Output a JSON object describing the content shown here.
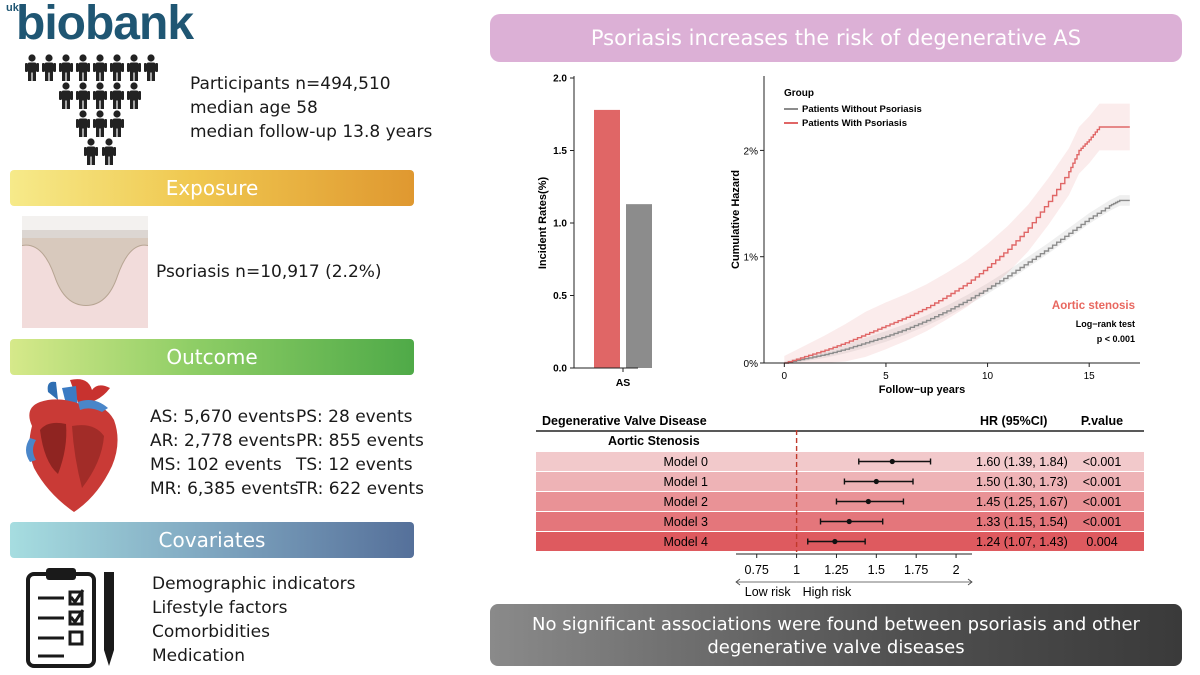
{
  "logo": {
    "prefix": "uk",
    "word": "biobank"
  },
  "cohort": {
    "participants": "Participants   n=494,510",
    "median_age": "median age 58",
    "follow_up": "median follow-up 13.8 years"
  },
  "exposure": {
    "heading": "Exposure",
    "text": "Psoriasis   n=10,917 (2.2%)"
  },
  "outcome": {
    "heading": "Outcome",
    "events_left": [
      "AS: 5,670 events",
      "AR: 2,778 events",
      "MS: 102 events",
      "MR: 6,385 events"
    ],
    "events_right": [
      "PS: 28 events",
      "PR: 855 events",
      "TS: 12 events",
      "TR: 622 events"
    ]
  },
  "covariates": {
    "heading": "Covariates",
    "items": [
      "Demographic indicators",
      "Lifestyle factors",
      "Comorbidities",
      "Medication"
    ]
  },
  "banner": "Psoriasis increases the risk of degenerative AS",
  "footer": {
    "line1": "No significant associations were found between psoriasis and other",
    "line2": "degenerative valve diseases"
  },
  "colors": {
    "psoriasis_red": "#e06666",
    "no_psoriasis_gray": "#8c8c8c",
    "banner_pink": "#dcb0d6",
    "logo_blue": "#1f5673",
    "annotation_red": "#e8675f"
  },
  "chart_data": [
    {
      "type": "bar",
      "categories": [
        "AS"
      ],
      "series": [
        {
          "values": [
            1.78
          ]
        },
        {
          "values": [
            1.13
          ]
        }
      ],
      "ylabel": "Incident Rates(%)",
      "ylim": [
        0,
        2.0
      ],
      "yticks": [
        "0.0",
        "0.5",
        "1.0",
        "1.5",
        "2.0"
      ]
    },
    {
      "type": "line",
      "legend_title": "Group",
      "xlabel": "Follow−up years",
      "ylabel": "Cumulative Hazard",
      "xlim": [
        -1,
        17.5
      ],
      "ylim": [
        0,
        2.7
      ],
      "xticks": [
        "0",
        "5",
        "10",
        "15"
      ],
      "yticks": [
        "0%",
        "1%",
        "2%"
      ],
      "annotation": "Aortic stenosis",
      "test_label": "Log−rank test",
      "p_label": "p < 0.001",
      "series": [
        {
          "name": "Patients Without Psoriasis",
          "x": [
            0,
            1,
            2,
            3,
            4,
            5,
            6,
            7,
            8,
            9,
            10,
            11,
            12,
            13,
            14,
            15,
            16,
            16.5,
            17
          ],
          "y": [
            0,
            0.04,
            0.08,
            0.13,
            0.19,
            0.25,
            0.32,
            0.4,
            0.49,
            0.59,
            0.7,
            0.82,
            0.95,
            1.08,
            1.22,
            1.36,
            1.48,
            1.53,
            1.53
          ]
        },
        {
          "name": "Patients With Psoriasis",
          "x": [
            0,
            1,
            2,
            3,
            4,
            5,
            6,
            7,
            8,
            9,
            10,
            11,
            12,
            13,
            14,
            14.5,
            15,
            15.5,
            16,
            17
          ],
          "y": [
            0,
            0.06,
            0.12,
            0.19,
            0.27,
            0.35,
            0.43,
            0.52,
            0.63,
            0.75,
            0.9,
            1.07,
            1.27,
            1.52,
            1.8,
            2.0,
            2.1,
            2.22,
            2.22,
            2.22
          ]
        }
      ]
    },
    {
      "type": "table",
      "header": {
        "disease": "Degenerative Valve Disease",
        "hr": "HR (95%CI)",
        "p": "P.value"
      },
      "group_label": "Aortic Stenosis",
      "models": [
        "Model 0",
        "Model 1",
        "Model 2",
        "Model 3",
        "Model 4"
      ],
      "hr": [
        1.6,
        1.5,
        1.45,
        1.33,
        1.24
      ],
      "lower": [
        1.39,
        1.3,
        1.25,
        1.15,
        1.07
      ],
      "upper": [
        1.84,
        1.73,
        1.67,
        1.54,
        1.43
      ],
      "hr_text": [
        "1.60 (1.39, 1.84)",
        "1.50 (1.30, 1.73)",
        "1.45 (1.25, 1.67)",
        "1.33 (1.15, 1.54)",
        "1.24 (1.07, 1.43)"
      ],
      "p_text": [
        "<0.001",
        "<0.001",
        "<0.001",
        "<0.001",
        "0.004"
      ],
      "xlim": [
        0.62,
        2.1
      ],
      "xticks": [
        0.75,
        1,
        1.25,
        1.5,
        1.75,
        2
      ],
      "xtick_labels": [
        "0.75",
        "1",
        "1.25",
        "1.5",
        "1.75",
        "2"
      ],
      "reference": 1,
      "low_label": "Low risk",
      "high_label": "High risk",
      "row_colors": [
        "#f2c9cb",
        "#eeb3b6",
        "#e99296",
        "#e4767b",
        "#de5a5f"
      ]
    }
  ]
}
